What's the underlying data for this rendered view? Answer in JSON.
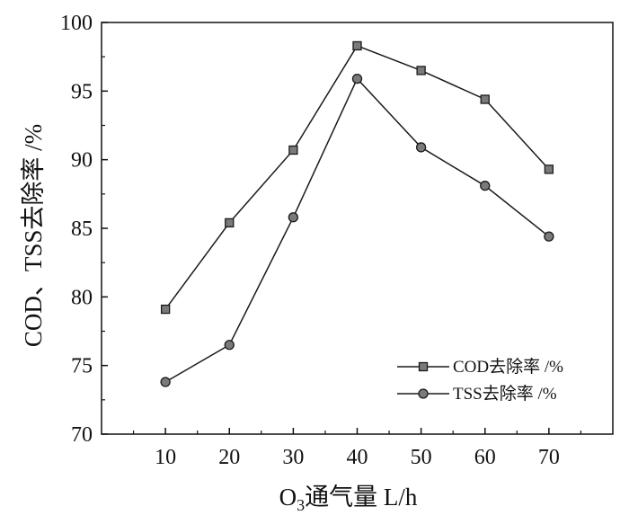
{
  "chart_data": {
    "type": "line",
    "title": "",
    "xlabel_main": "O",
    "xlabel_sub": "3",
    "xlabel_rest": "通气量 L/h",
    "ylabel": "COD、TSS去除率 /%",
    "x": [
      10,
      20,
      30,
      40,
      50,
      60,
      70
    ],
    "xticks": [
      "10",
      "20",
      "30",
      "40",
      "50",
      "60",
      "70"
    ],
    "yticks": [
      "70",
      "75",
      "80",
      "85",
      "90",
      "95",
      "100"
    ],
    "xlim": [
      0,
      80
    ],
    "ylim": [
      70,
      100
    ],
    "grid": false,
    "legend_position": "bottom-right",
    "series": [
      {
        "name": "COD去除率 /%",
        "marker": "square",
        "values": [
          79.1,
          85.4,
          90.7,
          98.3,
          96.5,
          94.4,
          89.3
        ]
      },
      {
        "name": "TSS去除率 /%",
        "marker": "circle",
        "values": [
          73.8,
          76.5,
          85.8,
          95.9,
          90.9,
          88.1,
          84.4
        ]
      }
    ],
    "line_color": "#1a1a1a",
    "marker_fill": "#7a7a7a"
  }
}
